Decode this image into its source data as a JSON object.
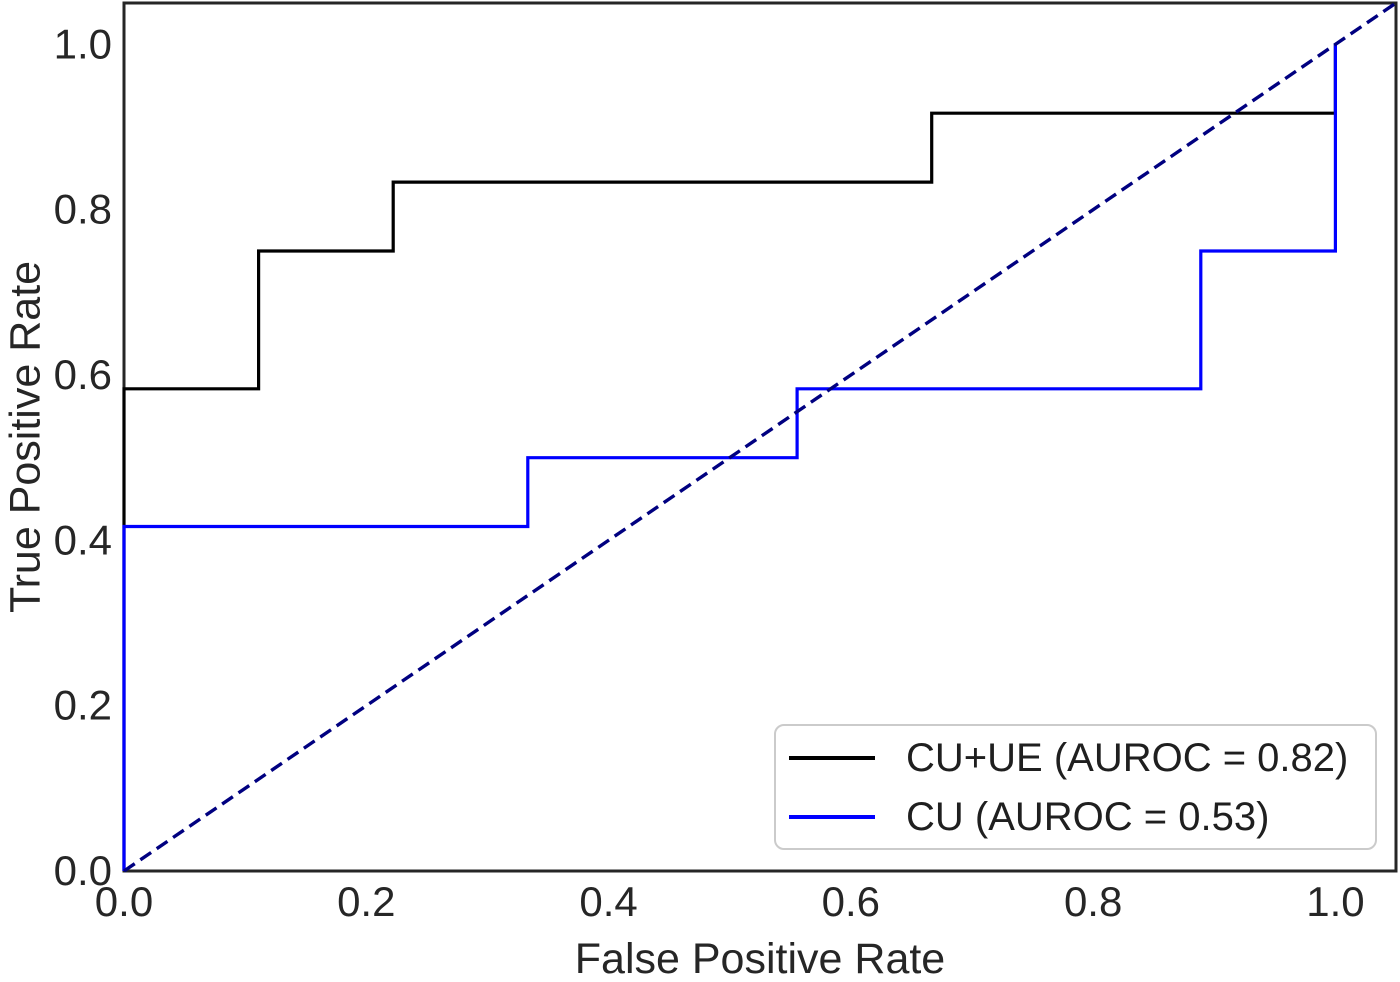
{
  "figure": {
    "background": "#ffffff",
    "text_color": "#262626",
    "spine_color": "#262626"
  },
  "chart_data": {
    "type": "line",
    "subtype": "roc-curve",
    "title": "",
    "xlabel": "False Positive Rate",
    "ylabel": "True Positive Rate",
    "xlim": [
      0,
      1.05
    ],
    "ylim": [
      0,
      1.05
    ],
    "xticks": [
      "0.0",
      "0.2",
      "0.4",
      "0.6",
      "0.8",
      "1.0"
    ],
    "yticks": [
      "0.0",
      "0.2",
      "0.4",
      "0.6",
      "0.8",
      "1.0"
    ],
    "grid": false,
    "legend_position": "lower right",
    "series": [
      {
        "name": "CU+UE (AUROC = 0.82)",
        "auroc": 0.82,
        "color": "#000000",
        "style": "solid",
        "x": [
          0,
          0,
          0.1111,
          0.1111,
          0.2222,
          0.2222,
          0.6667,
          0.6667,
          1.0,
          1.0
        ],
        "y": [
          0,
          0.5833,
          0.5833,
          0.75,
          0.75,
          0.8333,
          0.8333,
          0.9167,
          0.9167,
          1.0
        ]
      },
      {
        "name": "CU (AUROC = 0.53)",
        "auroc": 0.53,
        "color": "#0000ff",
        "style": "solid",
        "x": [
          0,
          0,
          0.3333,
          0.3333,
          0.5556,
          0.5556,
          0.8889,
          0.8889,
          1.0,
          1.0
        ],
        "y": [
          0,
          0.4167,
          0.4167,
          0.5,
          0.5,
          0.5833,
          0.5833,
          0.75,
          0.75,
          1.0
        ]
      },
      {
        "name": "chance-diagonal",
        "color": "#000080",
        "style": "dashed",
        "x": [
          0,
          1.05
        ],
        "y": [
          0,
          1.05
        ]
      }
    ]
  }
}
